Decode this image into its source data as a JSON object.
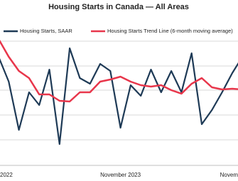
{
  "chart_data": {
    "type": "line",
    "title": "Housing Starts in Canada — All Areas",
    "categories": [
      "2022",
      null,
      null,
      null,
      null,
      null,
      null,
      null,
      null,
      null,
      null,
      null,
      "November 2023",
      null,
      null,
      null,
      null,
      null,
      null,
      null,
      null,
      null,
      null,
      null,
      "Novem"
    ],
    "series": [
      {
        "name": "Housing Starts, SAAR",
        "color": "#1e3a56",
        "values": [
          155,
          120,
          52,
          105,
          87,
          137,
          32,
          167,
          125,
          117,
          145,
          135,
          55,
          115,
          100,
          137,
          105,
          135,
          105,
          160,
          60,
          80,
          105,
          132,
          155
        ]
      },
      {
        "name": "Housing Starts Trend Line (6-month moving average)",
        "color": "#e8364b",
        "values": [
          180,
          155,
          135,
          125,
          102,
          102,
          93,
          92,
          105,
          105,
          120,
          123,
          127,
          120,
          115,
          113,
          115,
          108,
          103,
          117,
          125,
          112,
          109,
          110,
          109
        ]
      }
    ],
    "ylim": [
      0,
      200
    ],
    "grid": true
  }
}
